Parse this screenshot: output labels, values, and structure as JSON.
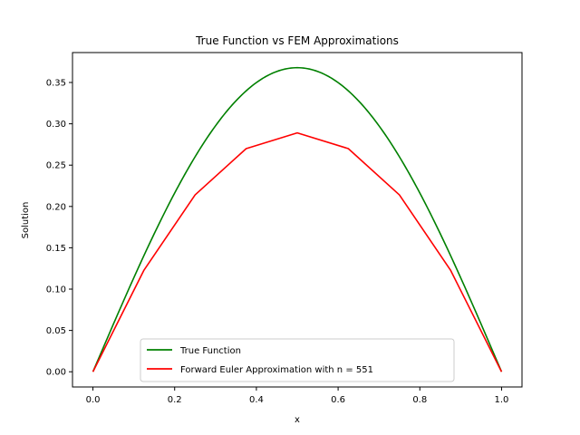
{
  "chart_data": {
    "type": "line",
    "title": "True Function vs FEM Approximations",
    "xlabel": "x",
    "ylabel": "Solution",
    "xlim": [
      -0.05,
      1.05
    ],
    "ylim": [
      -0.0184,
      0.3862
    ],
    "xticks": [
      0.0,
      0.2,
      0.4,
      0.6,
      0.8,
      1.0
    ],
    "xtick_labels": [
      "0.0",
      "0.2",
      "0.4",
      "0.6",
      "0.8",
      "1.0"
    ],
    "yticks": [
      0.0,
      0.05,
      0.1,
      0.15,
      0.2,
      0.25,
      0.3,
      0.35
    ],
    "ytick_labels": [
      "0.00",
      "0.05",
      "0.10",
      "0.15",
      "0.20",
      "0.25",
      "0.30",
      "0.35"
    ],
    "grid": false,
    "legend_position": "lower center",
    "series": [
      {
        "name": "True Function",
        "color": "#008000",
        "x": [
          0.0,
          0.05,
          0.1,
          0.15,
          0.2,
          0.25,
          0.3,
          0.35,
          0.4,
          0.45,
          0.5,
          0.55,
          0.6,
          0.65,
          0.7,
          0.75,
          0.8,
          0.85,
          0.9,
          0.95,
          1.0
        ],
        "y": [
          0.0,
          0.0671,
          0.1298,
          0.1862,
          0.2353,
          0.276,
          0.3086,
          0.3331,
          0.3502,
          0.3603,
          0.3679,
          0.3603,
          0.3502,
          0.3331,
          0.3086,
          0.276,
          0.2353,
          0.1862,
          0.1298,
          0.0671,
          0.0
        ]
      },
      {
        "name": "Forward Euler Approximation with n = 551",
        "color": "#ff0000",
        "x": [
          0.0,
          0.125,
          0.25,
          0.375,
          0.5,
          0.625,
          0.75,
          0.875,
          1.0
        ],
        "y": [
          0.0,
          0.123,
          0.214,
          0.27,
          0.289,
          0.27,
          0.214,
          0.123,
          0.0
        ]
      }
    ]
  }
}
